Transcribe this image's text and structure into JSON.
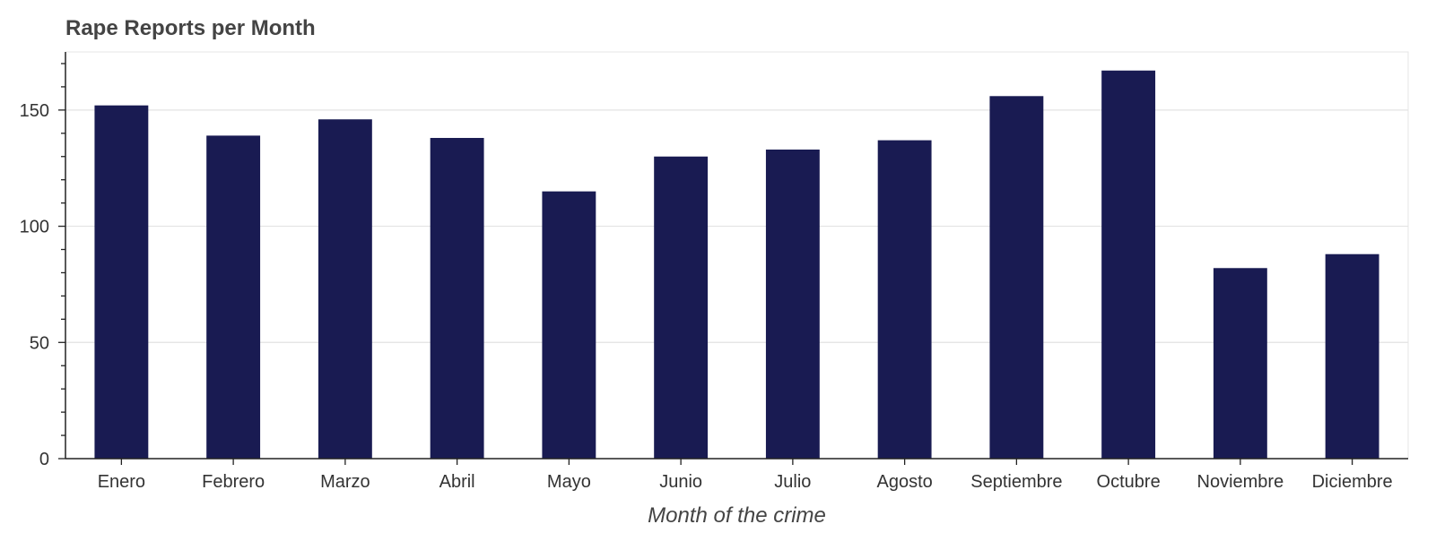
{
  "chart_data": {
    "type": "bar",
    "title": "Rape Reports per Month",
    "xlabel": "Month of the crime",
    "ylabel": "",
    "categories": [
      "Enero",
      "Febrero",
      "Marzo",
      "Abril",
      "Mayo",
      "Junio",
      "Julio",
      "Agosto",
      "Septiembre",
      "Octubre",
      "Noviembre",
      "Diciembre"
    ],
    "values": [
      152,
      139,
      146,
      138,
      115,
      130,
      133,
      137,
      156,
      167,
      82,
      88
    ],
    "ylim": [
      0,
      175
    ],
    "yticks": [
      0,
      50,
      100,
      150
    ],
    "grid": "horizontal",
    "bar_color": "#191b52"
  }
}
